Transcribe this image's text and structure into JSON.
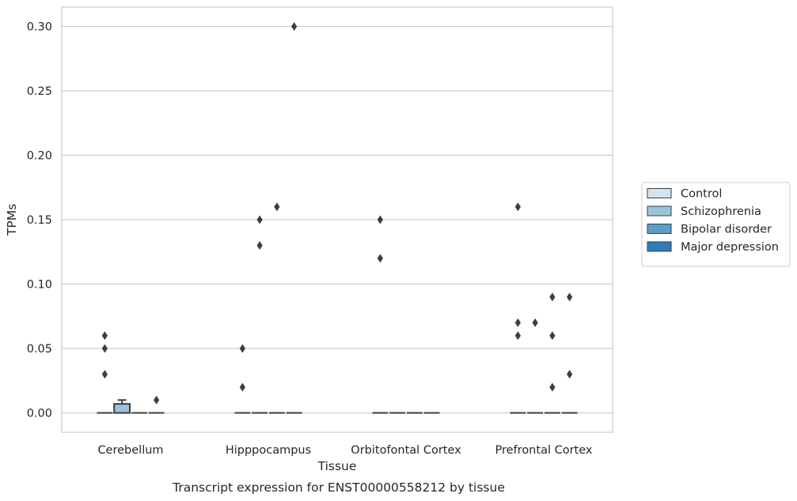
{
  "chart_data": {
    "type": "boxplot",
    "title": "Transcript expression for ENST00000558212 by tissue",
    "xlabel": "Tissue",
    "ylabel": "TPMs",
    "ylim": [
      -0.015,
      0.315
    ],
    "yticks": [
      0.0,
      0.05,
      0.1,
      0.15,
      0.2,
      0.25,
      0.3
    ],
    "ytick_labels": [
      "0.00",
      "0.05",
      "0.10",
      "0.15",
      "0.20",
      "0.25",
      "0.30"
    ],
    "categories": [
      "Cerebellum",
      "Hipppocampus",
      "Orbitofontal Cortex",
      "Prefrontal Cortex"
    ],
    "grid": "horizontal",
    "legend_position": "right",
    "series": [
      {
        "name": "Control",
        "color": "#d3e3f0",
        "boxes": [
          {
            "category": "Cerebellum",
            "q1": 0,
            "median": 0,
            "q3": 0,
            "whisker_low": 0,
            "whisker_high": 0,
            "outliers": [
              0.06,
              0.05,
              0.03
            ]
          },
          {
            "category": "Hipppocampus",
            "q1": 0,
            "median": 0,
            "q3": 0,
            "whisker_low": 0,
            "whisker_high": 0,
            "outliers": [
              0.05,
              0.02
            ]
          },
          {
            "category": "Orbitofontal Cortex",
            "q1": 0,
            "median": 0,
            "q3": 0,
            "whisker_low": 0,
            "whisker_high": 0,
            "outliers": [
              0.15,
              0.12
            ]
          },
          {
            "category": "Prefrontal Cortex",
            "q1": 0,
            "median": 0,
            "q3": 0,
            "whisker_low": 0,
            "whisker_high": 0,
            "outliers": [
              0.16,
              0.07,
              0.06
            ]
          }
        ]
      },
      {
        "name": "Schizophrenia",
        "color": "#9ac3dc",
        "boxes": [
          {
            "category": "Cerebellum",
            "q1": 0,
            "median": 0,
            "q3": 0.007,
            "whisker_low": 0,
            "whisker_high": 0.01,
            "outliers": []
          },
          {
            "category": "Hipppocampus",
            "q1": 0,
            "median": 0,
            "q3": 0,
            "whisker_low": 0,
            "whisker_high": 0,
            "outliers": [
              0.15,
              0.13
            ]
          },
          {
            "category": "Orbitofontal Cortex",
            "q1": 0,
            "median": 0,
            "q3": 0,
            "whisker_low": 0,
            "whisker_high": 0,
            "outliers": []
          },
          {
            "category": "Prefrontal Cortex",
            "q1": 0,
            "median": 0,
            "q3": 0,
            "whisker_low": 0,
            "whisker_high": 0,
            "outliers": [
              0.07
            ]
          }
        ]
      },
      {
        "name": "Bipolar disorder",
        "color": "#5b9ec9",
        "boxes": [
          {
            "category": "Cerebellum",
            "q1": 0,
            "median": 0,
            "q3": 0,
            "whisker_low": 0,
            "whisker_high": 0,
            "outliers": []
          },
          {
            "category": "Hipppocampus",
            "q1": 0,
            "median": 0,
            "q3": 0,
            "whisker_low": 0,
            "whisker_high": 0,
            "outliers": [
              0.16
            ]
          },
          {
            "category": "Orbitofontal Cortex",
            "q1": 0,
            "median": 0,
            "q3": 0,
            "whisker_low": 0,
            "whisker_high": 0,
            "outliers": []
          },
          {
            "category": "Prefrontal Cortex",
            "q1": 0,
            "median": 0,
            "q3": 0,
            "whisker_low": 0,
            "whisker_high": 0,
            "outliers": [
              0.09,
              0.06,
              0.02
            ]
          }
        ]
      },
      {
        "name": "Major depression",
        "color": "#2d7dbb",
        "boxes": [
          {
            "category": "Cerebellum",
            "q1": 0,
            "median": 0,
            "q3": 0,
            "whisker_low": 0,
            "whisker_high": 0,
            "outliers": [
              0.01
            ]
          },
          {
            "category": "Hipppocampus",
            "q1": 0,
            "median": 0,
            "q3": 0,
            "whisker_low": 0,
            "whisker_high": 0,
            "outliers": [
              0.3
            ]
          },
          {
            "category": "Orbitofontal Cortex",
            "q1": 0,
            "median": 0,
            "q3": 0,
            "whisker_low": 0,
            "whisker_high": 0,
            "outliers": []
          },
          {
            "category": "Prefrontal Cortex",
            "q1": 0,
            "median": 0,
            "q3": 0,
            "whisker_low": 0,
            "whisker_high": 0,
            "outliers": [
              0.09,
              0.03
            ]
          }
        ]
      }
    ]
  }
}
